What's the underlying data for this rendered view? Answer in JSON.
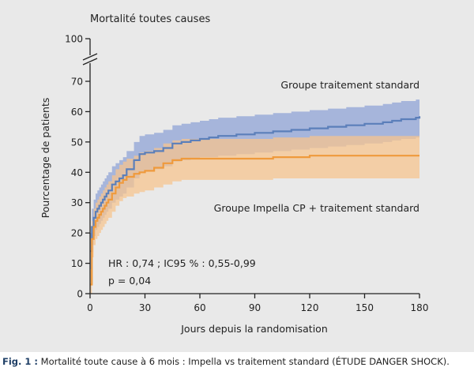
{
  "chart_data": {
    "type": "line",
    "title": "Mortalité toutes causes",
    "xlabel": "Jours depuis la randomisation",
    "ylabel": "Pourcentage de patients",
    "xlim": [
      0,
      180
    ],
    "ylim": [
      0,
      70
    ],
    "y_axis_break": {
      "from": 70,
      "to": 100
    },
    "x_ticks": [
      0,
      30,
      60,
      90,
      120,
      150,
      180
    ],
    "y_ticks": [
      0,
      10,
      20,
      30,
      40,
      50,
      60,
      70,
      100
    ],
    "grid": false,
    "series": [
      {
        "name": "Groupe traitement standard",
        "color": "#5b7fba",
        "band_color": "#8fa3d6",
        "x": [
          0,
          1,
          2,
          3,
          4,
          5,
          6,
          7,
          8,
          9,
          10,
          12,
          14,
          16,
          18,
          20,
          24,
          27,
          30,
          35,
          40,
          45,
          50,
          55,
          60,
          65,
          70,
          80,
          90,
          100,
          110,
          120,
          130,
          140,
          150,
          160,
          165,
          170,
          175,
          178,
          180
        ],
        "values": [
          14,
          22,
          25,
          27,
          28,
          29,
          30,
          31,
          32,
          33,
          34,
          36,
          37,
          38,
          39,
          41,
          44,
          46,
          46.5,
          47,
          48,
          49.5,
          50,
          50.5,
          51,
          51.5,
          52,
          52.5,
          53,
          53.5,
          54,
          54.5,
          55,
          55.5,
          56,
          56.5,
          57,
          57.5,
          57.5,
          58,
          58.5
        ],
        "lower": [
          8,
          16,
          19,
          21,
          22,
          23,
          24,
          25,
          26,
          27,
          28,
          30,
          31,
          32,
          33,
          35,
          38,
          40,
          40.5,
          41,
          42,
          43.5,
          44,
          44.5,
          45,
          45,
          45.5,
          46,
          46.5,
          47,
          47.5,
          48,
          48.5,
          49,
          49.5,
          50,
          50.5,
          51,
          51,
          51.5,
          52
        ],
        "upper": [
          20,
          28,
          31,
          33,
          34,
          35,
          36,
          37,
          38,
          39,
          40,
          42,
          43,
          44,
          45,
          47,
          50,
          52,
          52.5,
          53,
          54,
          55.5,
          56,
          56.5,
          57,
          57.5,
          58,
          58.5,
          59,
          59.5,
          60,
          60.5,
          61,
          61.5,
          62,
          62.5,
          63,
          63.5,
          63.5,
          64,
          65
        ]
      },
      {
        "name": "Groupe Impella CP + traitement standard",
        "color": "#ef9a3c",
        "band_color": "#f5c48f",
        "x": [
          0,
          1,
          2,
          3,
          4,
          5,
          6,
          7,
          8,
          9,
          10,
          12,
          14,
          16,
          18,
          20,
          24,
          27,
          30,
          35,
          40,
          45,
          50,
          55,
          60,
          70,
          80,
          90,
          100,
          110,
          120,
          130,
          140,
          150,
          160,
          170,
          180
        ],
        "values": [
          3,
          18,
          22,
          24,
          25,
          26,
          27,
          28,
          29,
          30,
          31,
          33,
          35,
          36.5,
          37.5,
          38.5,
          39.5,
          40,
          40.5,
          41.5,
          43,
          44,
          44.5,
          44.5,
          44.5,
          44.5,
          44.5,
          44.5,
          45,
          45,
          45.5,
          45.5,
          45.5,
          45.5,
          45.5,
          45.5,
          45.5
        ],
        "lower": [
          0,
          12,
          16,
          18,
          19,
          20,
          21,
          22,
          23,
          24,
          25,
          27,
          29,
          30.5,
          31.5,
          32,
          33,
          33.5,
          34,
          35,
          36,
          37,
          37.5,
          37.5,
          37.5,
          37.5,
          37.5,
          37.5,
          38,
          38,
          38,
          38,
          38,
          38,
          38,
          38,
          38
        ],
        "upper": [
          8,
          24,
          28,
          30,
          31,
          32,
          33,
          34,
          35,
          36,
          37,
          39,
          41,
          42.5,
          43.5,
          44.5,
          45.5,
          46.5,
          47,
          48,
          49.5,
          50.5,
          51,
          51,
          51,
          51,
          51,
          51,
          51.5,
          51.5,
          52,
          52,
          52,
          52,
          52,
          52,
          52
        ]
      }
    ],
    "annotations": {
      "hr": "HR : 0,74 ; IC95 % : 0,55-0,99",
      "p": "p = 0,04"
    }
  },
  "caption": {
    "label": "Fig. 1 :",
    "text": " Mortalité toute cause à 6 mois : Impella vs traitement standard (ÉTUDE DANGER SHOCK)."
  }
}
